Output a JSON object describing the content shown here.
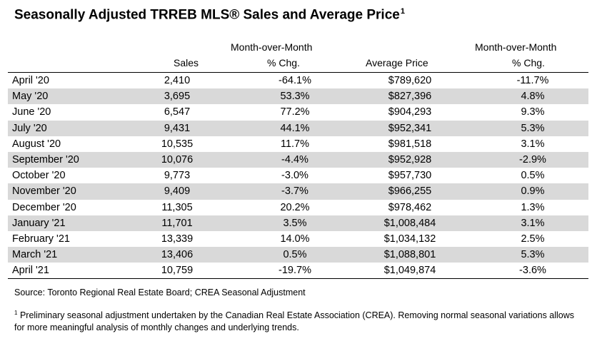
{
  "title": {
    "text": "Seasonally Adjusted TRREB MLS® Sales and Average Price",
    "footnote_mark": "1"
  },
  "headers": {
    "sales": "Sales",
    "sales_mom_line1": "Month-over-Month",
    "sales_mom_line2": "% Chg.",
    "avg_price": "Average Price",
    "price_mom_line1": "Month-over-Month",
    "price_mom_line2": "% Chg."
  },
  "rows": [
    {
      "month": "April '20",
      "sales": "2,410",
      "sales_mom": "-64.1%",
      "avg_price": "$789,620",
      "price_mom": "-11.7%"
    },
    {
      "month": "May '20",
      "sales": "3,695",
      "sales_mom": "53.3%",
      "avg_price": "$827,396",
      "price_mom": "4.8%"
    },
    {
      "month": "June '20",
      "sales": "6,547",
      "sales_mom": "77.2%",
      "avg_price": "$904,293",
      "price_mom": "9.3%"
    },
    {
      "month": "July '20",
      "sales": "9,431",
      "sales_mom": "44.1%",
      "avg_price": "$952,341",
      "price_mom": "5.3%"
    },
    {
      "month": "August '20",
      "sales": "10,535",
      "sales_mom": "11.7%",
      "avg_price": "$981,518",
      "price_mom": "3.1%"
    },
    {
      "month": "September '20",
      "sales": "10,076",
      "sales_mom": "-4.4%",
      "avg_price": "$952,928",
      "price_mom": "-2.9%"
    },
    {
      "month": "October '20",
      "sales": "9,773",
      "sales_mom": "-3.0%",
      "avg_price": "$957,730",
      "price_mom": "0.5%"
    },
    {
      "month": "November '20",
      "sales": "9,409",
      "sales_mom": "-3.7%",
      "avg_price": "$966,255",
      "price_mom": "0.9%"
    },
    {
      "month": "December '20",
      "sales": "11,305",
      "sales_mom": "20.2%",
      "avg_price": "$978,462",
      "price_mom": "1.3%"
    },
    {
      "month": "January '21",
      "sales": "11,701",
      "sales_mom": "3.5%",
      "avg_price": "$1,008,484",
      "price_mom": "3.1%"
    },
    {
      "month": "February '21",
      "sales": "13,339",
      "sales_mom": "14.0%",
      "avg_price": "$1,034,132",
      "price_mom": "2.5%"
    },
    {
      "month": "March '21",
      "sales": "13,406",
      "sales_mom": "0.5%",
      "avg_price": "$1,088,801",
      "price_mom": "5.3%"
    },
    {
      "month": "April '21",
      "sales": "10,759",
      "sales_mom": "-19.7%",
      "avg_price": "$1,049,874",
      "price_mom": "-3.6%"
    }
  ],
  "source": "Source: Toronto Regional Real Estate Board; CREA Seasonal Adjustment",
  "footnote": {
    "mark": "1",
    "text": "Preliminary seasonal adjustment undertaken by the Canadian Real Estate Association (CREA).  Removing normal seasonal variations allows for more meaningful analysis of monthly changes and underlying trends."
  },
  "colors": {
    "alt_row": "#d9d9d9"
  }
}
